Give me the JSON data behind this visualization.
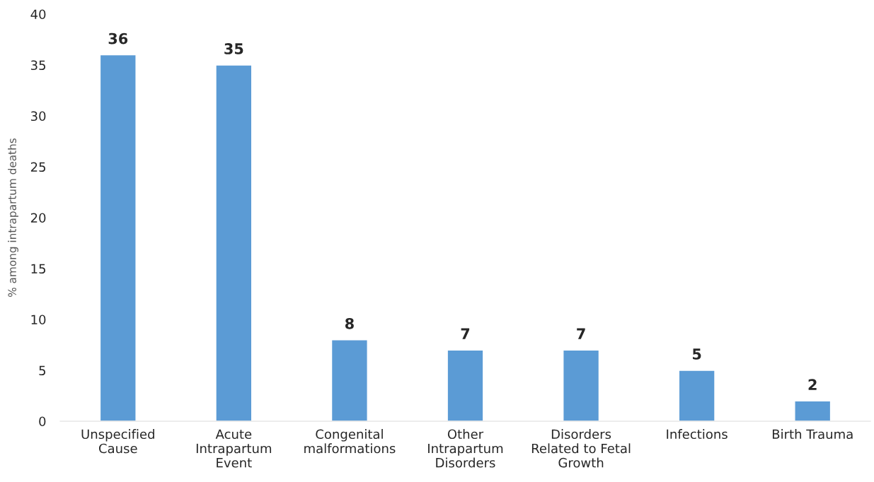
{
  "chart_data": {
    "type": "bar",
    "ylabel": "% among intrapartum deaths",
    "categories": [
      "Unspecified\nCause",
      "Acute\nIntrapartum\nEvent",
      "Congenital\nmalformations",
      "Other\nIntrapartum\nDisorders",
      "Disorders\nRelated to Fetal\nGrowth",
      "Infections",
      "Birth Trauma"
    ],
    "values": [
      36,
      35,
      8,
      7,
      7,
      5,
      2
    ],
    "color": "#5b9bd5",
    "ylim": [
      0,
      40
    ],
    "yticks": [
      0,
      5,
      10,
      15,
      20,
      25,
      30,
      35,
      40
    ],
    "grid": false,
    "data_labels": true,
    "legend": false
  }
}
